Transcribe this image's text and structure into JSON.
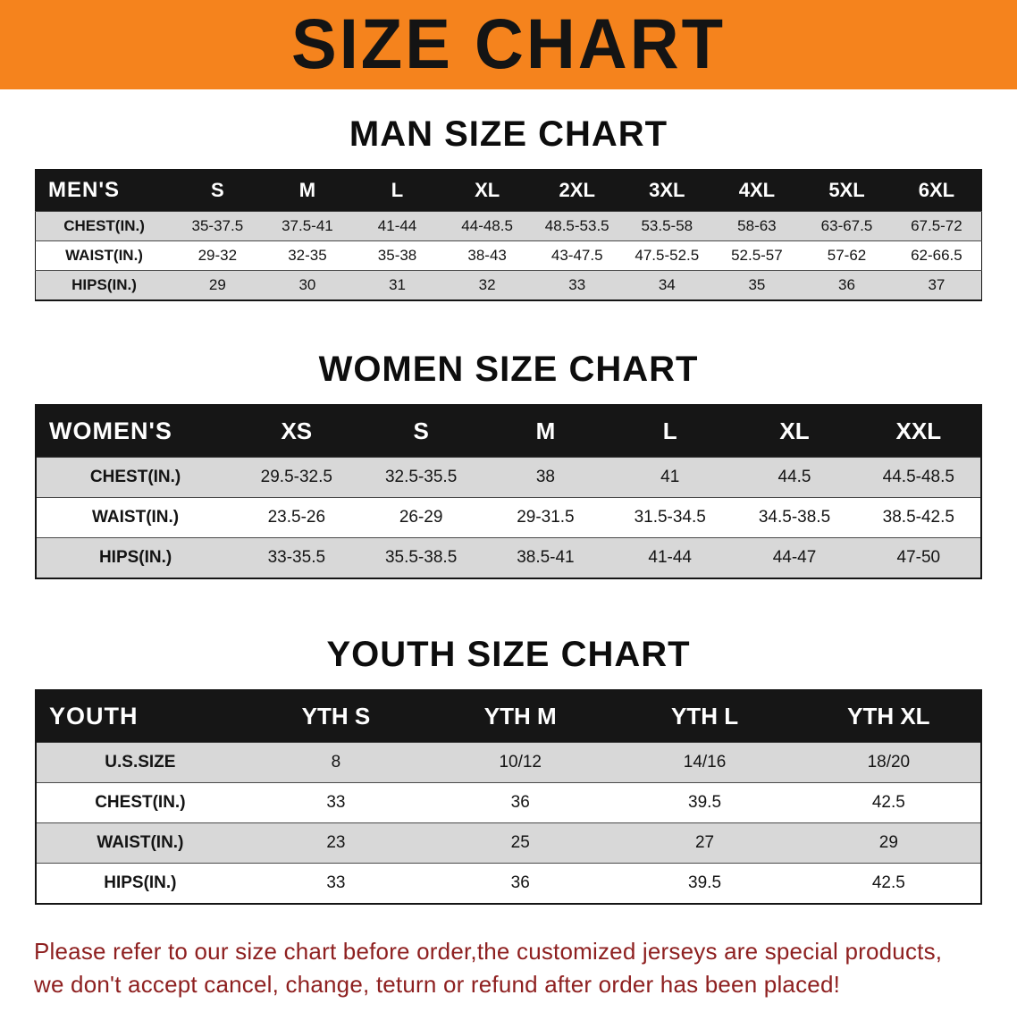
{
  "banner": {
    "title": "SIZE CHART"
  },
  "sections": {
    "men": {
      "heading": "MAN SIZE CHART",
      "table": {
        "header": [
          "MEN'S",
          "S",
          "M",
          "L",
          "XL",
          "2XL",
          "3XL",
          "4XL",
          "5XL",
          "6XL"
        ],
        "rows": [
          [
            "CHEST(IN.)",
            "35-37.5",
            "37.5-41",
            "41-44",
            "44-48.5",
            "48.5-53.5",
            "53.5-58",
            "58-63",
            "63-67.5",
            "67.5-72"
          ],
          [
            "WAIST(IN.)",
            "29-32",
            "32-35",
            "35-38",
            "38-43",
            "43-47.5",
            "47.5-52.5",
            "52.5-57",
            "57-62",
            "62-66.5"
          ],
          [
            "HIPS(IN.)",
            "29",
            "30",
            "31",
            "32",
            "33",
            "34",
            "35",
            "36",
            "37"
          ]
        ]
      }
    },
    "women": {
      "heading": "WOMEN SIZE CHART",
      "table": {
        "header": [
          "WOMEN'S",
          "XS",
          "S",
          "M",
          "L",
          "XL",
          "XXL"
        ],
        "rows": [
          [
            "CHEST(IN.)",
            "29.5-32.5",
            "32.5-35.5",
            "38",
            "41",
            "44.5",
            "44.5-48.5"
          ],
          [
            "WAIST(IN.)",
            "23.5-26",
            "26-29",
            "29-31.5",
            "31.5-34.5",
            "34.5-38.5",
            "38.5-42.5"
          ],
          [
            "HIPS(IN.)",
            "33-35.5",
            "35.5-38.5",
            "38.5-41",
            "41-44",
            "44-47",
            "47-50"
          ]
        ]
      }
    },
    "youth": {
      "heading": "YOUTH SIZE CHART",
      "table": {
        "header": [
          "YOUTH",
          "YTH S",
          "YTH M",
          "YTH L",
          "YTH XL"
        ],
        "rows": [
          [
            "U.S.SIZE",
            "8",
            "10/12",
            "14/16",
            "18/20"
          ],
          [
            "CHEST(IN.)",
            "33",
            "36",
            "39.5",
            "42.5"
          ],
          [
            "WAIST(IN.)",
            "23",
            "25",
            "27",
            "29"
          ],
          [
            "HIPS(IN.)",
            "33",
            "36",
            "39.5",
            "42.5"
          ]
        ]
      }
    }
  },
  "footer": {
    "line1": "Please refer to our size chart before order,the customized jerseys are special products,",
    "line2": "we don't accept cancel, change, teturn or refund after order has been placed!"
  },
  "colors": {
    "banner_orange": "#F5831D",
    "header_bar": "#161616",
    "row_shaded": "#d8d8d8",
    "notice_red": "#8E2020"
  }
}
